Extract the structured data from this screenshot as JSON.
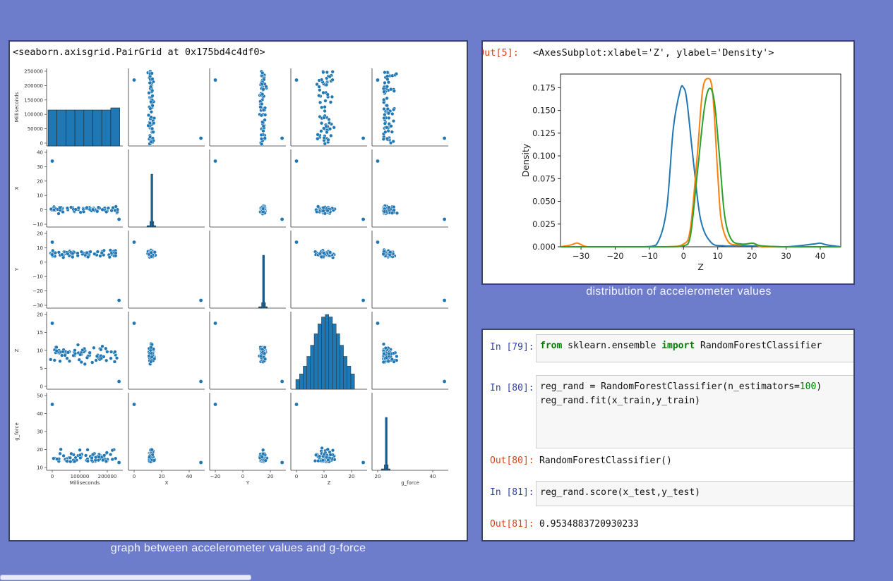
{
  "pairgrid_panel": {
    "header": "<seaborn.axisgrid.PairGrid at 0x175bd4c4df0>",
    "caption": "graph between accelerometer values and g-force",
    "variables": [
      "Milliseconds",
      "X",
      "Y",
      "Z",
      "g_force"
    ],
    "row_ticks": [
      [
        "250000",
        "200000",
        "150000",
        "100000",
        "50000",
        "0"
      ],
      [
        "40",
        "30",
        "20",
        "10",
        "0",
        "−10"
      ],
      [
        "20",
        "10",
        "0",
        "−10",
        "−20",
        "−30"
      ],
      [
        "20",
        "15",
        "10",
        "5",
        "0"
      ],
      [
        "50",
        "40",
        "30",
        "20",
        "10"
      ]
    ],
    "col_ticks": [
      [
        "0",
        "100000",
        "200000"
      ],
      [
        "0",
        "20",
        "40"
      ],
      [
        "−20",
        "0",
        "20"
      ],
      [
        "0",
        "10",
        "20"
      ],
      [
        "20",
        "40"
      ]
    ]
  },
  "kde_panel": {
    "out_prompt": "Out[5]:",
    "header": "<AxesSubplot:xlabel='Z', ylabel='Density'>",
    "caption": "distribution of accelerometer values"
  },
  "chart_data": {
    "type": "line",
    "xlabel": "Z",
    "ylabel": "Density",
    "xlim": [
      -36,
      46
    ],
    "ylim": [
      0,
      0.19
    ],
    "x_ticks": [
      -30,
      -20,
      -10,
      0,
      10,
      20,
      30,
      40
    ],
    "y_ticks": [
      0.0,
      0.025,
      0.05,
      0.075,
      0.1,
      0.125,
      0.15,
      0.175
    ],
    "x_tick_labels": [
      "−30",
      "−20",
      "−10",
      "0",
      "10",
      "20",
      "30",
      "40"
    ],
    "y_tick_labels": [
      "0.000",
      "0.025",
      "0.050",
      "0.075",
      "0.100",
      "0.125",
      "0.150",
      "0.175"
    ],
    "grid": false,
    "series": [
      {
        "color": "#1f77b4",
        "x": [
          -36,
          -20,
          -12,
          -8,
          -5,
          -3,
          -1,
          0,
          1,
          3,
          5,
          8,
          12,
          20,
          30,
          38,
          40,
          42,
          46
        ],
        "values": [
          0,
          0,
          0,
          0.002,
          0.04,
          0.13,
          0.172,
          0.175,
          0.16,
          0.09,
          0.03,
          0.005,
          0.001,
          0.001,
          0,
          0.003,
          0.004,
          0.002,
          0
        ]
      },
      {
        "color": "#ff7f0e",
        "x": [
          -36,
          -33,
          -31,
          -28,
          -20,
          -5,
          0,
          2,
          4,
          5.5,
          7,
          8.5,
          10,
          11,
          13,
          16,
          20,
          21,
          23,
          30,
          46
        ],
        "values": [
          0,
          0.002,
          0.004,
          0,
          0,
          0,
          0.003,
          0.02,
          0.1,
          0.17,
          0.185,
          0.17,
          0.08,
          0.03,
          0.006,
          0.002,
          0.004,
          0.003,
          0,
          0,
          0
        ]
      },
      {
        "color": "#2ca02c",
        "x": [
          -36,
          -20,
          -5,
          0,
          2,
          4,
          6,
          7.5,
          9,
          10.5,
          12,
          14,
          17,
          20,
          21,
          23,
          30,
          46
        ],
        "values": [
          0,
          0,
          0,
          0.001,
          0.012,
          0.08,
          0.15,
          0.174,
          0.16,
          0.1,
          0.035,
          0.008,
          0.003,
          0.004,
          0.003,
          0.001,
          0,
          0
        ]
      }
    ]
  },
  "notebook_panel": {
    "cells": [
      {
        "prompt": "In [79]:",
        "code_parts": [
          {
            "t": "from",
            "c": "kw"
          },
          {
            "t": " sklearn.ensemble ",
            "c": ""
          },
          {
            "t": "import",
            "c": "kw"
          },
          {
            "t": " RandomForestClassifier",
            "c": ""
          }
        ]
      },
      {
        "prompt": "In [80]:",
        "line1_parts": [
          {
            "t": "reg_rand = RandomForestClassifier(n_estimators=",
            "c": ""
          },
          {
            "t": "100",
            "c": "num"
          },
          {
            "t": ")",
            "c": ""
          }
        ],
        "line2": "reg_rand.fit(x_train,y_train)"
      },
      {
        "prompt": "Out[80]:",
        "output": "RandomForestClassifier()"
      },
      {
        "prompt": "In [81]:",
        "code": "reg_rand.score(x_test,y_test)"
      },
      {
        "prompt": "Out[81]:",
        "output": "0.9534883720930233"
      }
    ]
  },
  "colors": {
    "background": "#6e7dcb",
    "seaborn_blue": "#1f77b4",
    "prompt_in": "#303f9f",
    "prompt_out": "#d84315"
  }
}
